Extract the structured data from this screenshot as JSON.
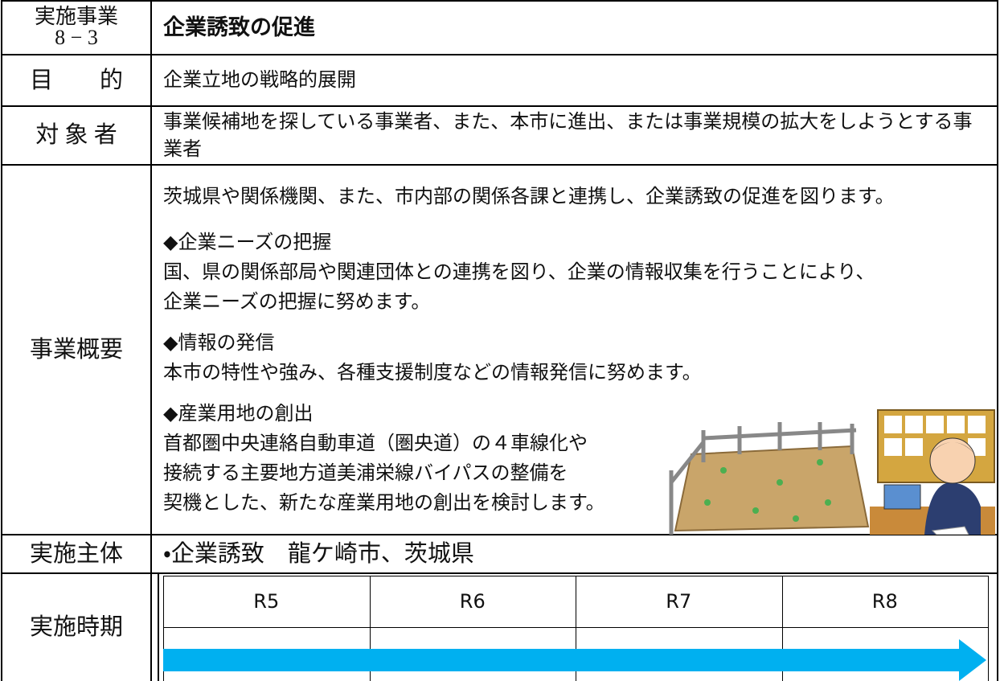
{
  "header": {
    "label": "実施事業",
    "number": "8 − 3",
    "title": "企業誘致の促進"
  },
  "purpose": {
    "label": "目　　的",
    "content": "企業立地の戦略的展開"
  },
  "target": {
    "label": "対 象 者",
    "content": "事業候補地を探している事業者、また、本市に進出、または事業規模の拡大をしようとする事業者"
  },
  "overview": {
    "label": "事業概要",
    "intro": "茨城県や関係機関、また、市内部の関係各課と連携し、企業誘致の促進を図ります。",
    "sections": [
      {
        "heading": "◆企業ニーズの把握",
        "lines": [
          "国、県の関係部局や関連団体との連携を図り、企業の情報収集を行うことにより、",
          "企業ニーズの把握に努めます。"
        ]
      },
      {
        "heading": "◆情報の発信",
        "lines": [
          "本市の特性や強み、各種支援制度などの情報発信に努めます。"
        ]
      },
      {
        "heading": "◆産業用地の創出",
        "lines": [
          "首都圏中央連絡自動車道（圏央道）の４車線化や",
          "接続する主要地方道美浦栄線バイパスの整備を",
          "契機とした、新たな産業用地の創出を検討します。"
        ]
      }
    ]
  },
  "implementer": {
    "label": "実施主体",
    "content": "・企業誘致　龍ケ崎市、茨城県"
  },
  "schedule": {
    "label": "実施時期",
    "years": [
      "R5",
      "R6",
      "R7",
      "R8"
    ]
  }
}
